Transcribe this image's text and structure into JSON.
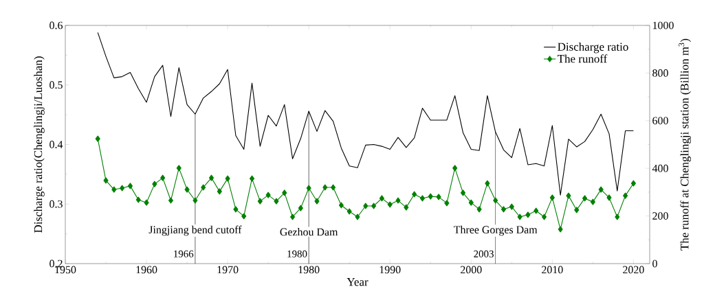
{
  "chart_data": {
    "type": "line",
    "xlabel": "Year",
    "ylabel": "Discharge ratio(Chenglingji/Luoshan)",
    "y2label": "The runoff at Chenglingji station (Billion m$^{3}$)",
    "xlim": [
      1950,
      2022
    ],
    "xticks": [
      1950,
      1960,
      1970,
      1980,
      1990,
      2000,
      2010,
      2020
    ],
    "ylim": [
      0.2,
      0.6
    ],
    "yticks": [
      0.2,
      0.3,
      0.4,
      0.5,
      0.6
    ],
    "y2lim": [
      0,
      1000
    ],
    "y2ticks": [
      0,
      200,
      400,
      600,
      800,
      1000
    ],
    "legend": "top right",
    "grid": false,
    "x": [
      1954,
      1955,
      1956,
      1957,
      1958,
      1959,
      1960,
      1961,
      1962,
      1963,
      1964,
      1965,
      1966,
      1967,
      1968,
      1969,
      1970,
      1971,
      1972,
      1973,
      1974,
      1975,
      1976,
      1977,
      1978,
      1979,
      1980,
      1981,
      1982,
      1983,
      1984,
      1985,
      1986,
      1987,
      1988,
      1989,
      1990,
      1991,
      1992,
      1993,
      1994,
      1995,
      1996,
      1997,
      1998,
      1999,
      2000,
      2001,
      2002,
      2003,
      2004,
      2005,
      2006,
      2007,
      2008,
      2009,
      2010,
      2011,
      2012,
      2013,
      2014,
      2015,
      2016,
      2017,
      2018,
      2019,
      2020
    ],
    "series": [
      {
        "name": "Discharge ratio",
        "color": "#000000",
        "marker": "none",
        "values": [
          0.588,
          0.548,
          0.512,
          0.514,
          0.521,
          0.494,
          0.471,
          0.514,
          0.533,
          0.447,
          0.529,
          0.467,
          0.451,
          0.478,
          0.489,
          0.502,
          0.526,
          0.415,
          0.392,
          0.503,
          0.397,
          0.449,
          0.431,
          0.467,
          0.376,
          0.41,
          0.456,
          0.422,
          0.457,
          0.439,
          0.394,
          0.364,
          0.361,
          0.399,
          0.4,
          0.397,
          0.392,
          0.412,
          0.395,
          0.411,
          0.461,
          0.441,
          0.441,
          0.441,
          0.482,
          0.42,
          0.392,
          0.39,
          0.482,
          0.421,
          0.391,
          0.378,
          0.427,
          0.366,
          0.368,
          0.364,
          0.432,
          0.315,
          0.409,
          0.396,
          0.405,
          0.425,
          0.451,
          0.418,
          0.322,
          0.423,
          0.423
        ]
      },
      {
        "name": "The runoff",
        "color": "#008000",
        "marker": "diamond",
        "axis": "y2",
        "values": [
          524,
          349,
          311,
          317,
          326,
          268,
          256,
          334,
          360,
          265,
          401,
          311,
          265,
          320,
          360,
          303,
          357,
          228,
          199,
          357,
          262,
          288,
          262,
          297,
          196,
          233,
          317,
          262,
          320,
          320,
          245,
          219,
          196,
          242,
          242,
          274,
          248,
          265,
          236,
          291,
          274,
          282,
          280,
          254,
          401,
          297,
          256,
          228,
          337,
          265,
          228,
          239,
          196,
          205,
          222,
          196,
          277,
          144,
          285,
          225,
          274,
          259,
          311,
          277,
          196,
          285,
          337
        ]
      }
    ],
    "ref_lines": [
      {
        "axis": "x",
        "value": 1966,
        "label": "1966",
        "color": "#000000"
      },
      {
        "axis": "x",
        "value": 1980,
        "label": "1980",
        "color": "#000000"
      },
      {
        "axis": "x",
        "value": 2003,
        "label": "2003",
        "color": "#000000"
      }
    ],
    "annotations": [
      {
        "text": "Jingjiang bend cutoff",
        "x": 1966,
        "y": 0.245
      },
      {
        "text": "Gezhou Dam",
        "x": 1980,
        "y": 0.245
      },
      {
        "text": "Three Gorges Dam",
        "x": 2003,
        "y": 0.245
      }
    ]
  }
}
